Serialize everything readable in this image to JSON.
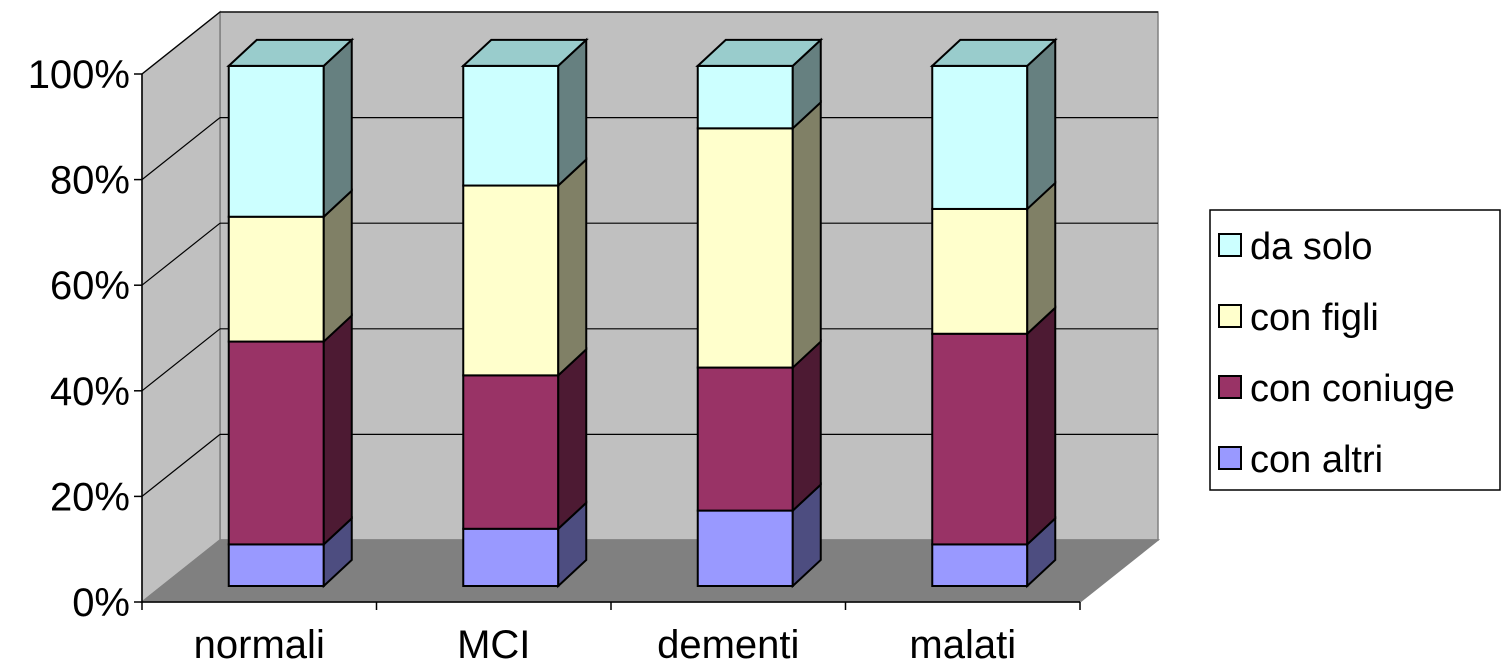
{
  "chart_data": {
    "type": "bar",
    "stacked": true,
    "percent_stacked": true,
    "three_d": true,
    "categories": [
      "normali",
      "MCI",
      "dementi",
      "malati"
    ],
    "series": [
      {
        "name": "con altri",
        "color": "#9999ff",
        "side_color": "#4d4d80",
        "values": [
          8,
          11,
          14.5,
          8
        ]
      },
      {
        "name": "con coniuge",
        "color": "#993366",
        "side_color": "#4d1a33",
        "values": [
          39,
          29.5,
          27.5,
          40.5
        ]
      },
      {
        "name": "con figli",
        "color": "#ffffcc",
        "side_color": "#808066",
        "values": [
          24,
          36.5,
          46,
          24
        ]
      },
      {
        "name": "da solo",
        "color": "#ccffff",
        "side_color": "#668080",
        "values": [
          29,
          23,
          12,
          27.5
        ]
      }
    ],
    "y_ticks": [
      "0%",
      "20%",
      "40%",
      "60%",
      "80%",
      "100%"
    ],
    "ylim": [
      0,
      100
    ],
    "grid": true,
    "legend_position": "right",
    "wall_color": "#c0c0c0",
    "floor_color": "#808080"
  }
}
